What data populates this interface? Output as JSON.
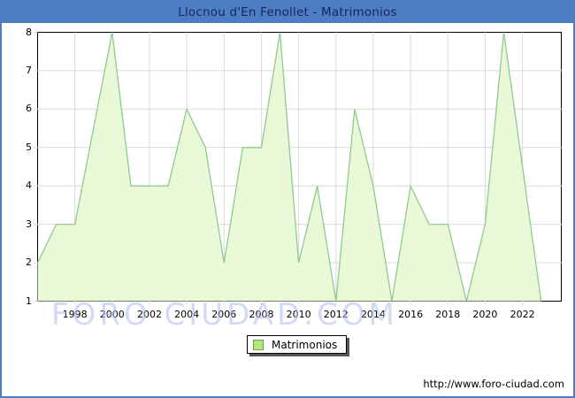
{
  "title_bar": {
    "text": "Llocnou d'En Fenollet - Matrimonios",
    "background": "#4d7ec4",
    "text_color": "#17255c"
  },
  "watermark": {
    "text": "FORO CIUDAD.COM"
  },
  "legend": {
    "label": "Matrimonios",
    "swatch_fill": "#b3e87d",
    "swatch_border": "#6b9a55"
  },
  "footer": {
    "url": "http://www.foro-ciudad.com"
  },
  "chart_data": {
    "type": "area",
    "title": "Llocnou d'En Fenollet - Matrimonios",
    "series_name": "Matrimonios",
    "x": [
      1996,
      1997,
      1998,
      1999,
      2000,
      2001,
      2002,
      2003,
      2004,
      2005,
      2006,
      2007,
      2008,
      2009,
      2010,
      2011,
      2012,
      2013,
      2014,
      2015,
      2016,
      2017,
      2018,
      2019,
      2020,
      2021,
      2022,
      2023
    ],
    "values": [
      2,
      3,
      3,
      5.5,
      8,
      4,
      4,
      4,
      6,
      5,
      2,
      5,
      5,
      8,
      2,
      4,
      1,
      6,
      4,
      1,
      4,
      3,
      3,
      1,
      3,
      8,
      4.5,
      1
    ],
    "ylim": [
      1,
      8
    ],
    "y_ticks": [
      1,
      2,
      3,
      4,
      5,
      6,
      7,
      8
    ],
    "x_ticks": [
      1998,
      2000,
      2002,
      2004,
      2006,
      2008,
      2010,
      2012,
      2014,
      2016,
      2018,
      2020,
      2022
    ],
    "grid": true,
    "legend_position": "bottom-center",
    "line_color": "#8fca8f",
    "fill_color": "#e9f9d7",
    "grid_color": "#d9d9d9",
    "axis_color": "#000000"
  }
}
